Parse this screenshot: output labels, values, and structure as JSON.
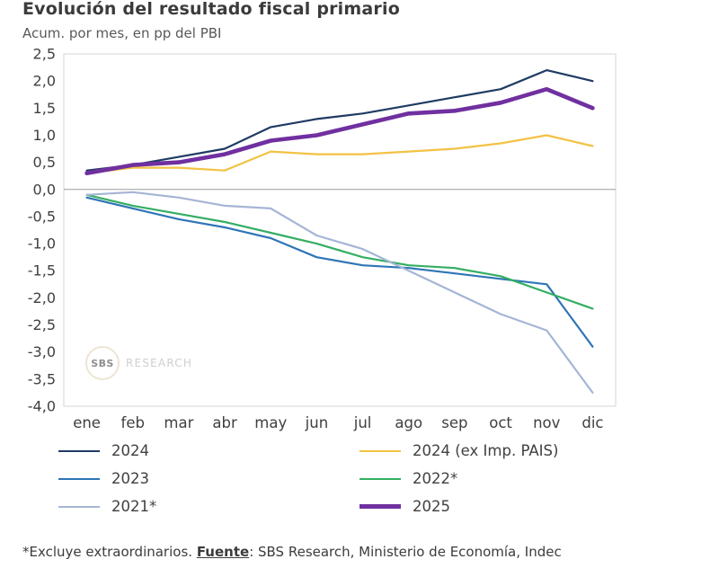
{
  "header": {
    "title": "Evolución del resultado fiscal primario",
    "subtitle": "Acum. por mes, en pp del PBI"
  },
  "watermark": {
    "badge": "SBS",
    "label": "RESEARCH"
  },
  "footer": {
    "prefix": "*Excluye extraordinarios. ",
    "source_label": "Fuente",
    "source_text": ": SBS Research, Ministerio de Economía, Indec"
  },
  "chart_data": {
    "type": "line",
    "title": "Evolución del resultado fiscal primario",
    "subtitle": "Acum. por mes, en pp del PBI",
    "categories": [
      "ene",
      "feb",
      "mar",
      "abr",
      "may",
      "jun",
      "jul",
      "ago",
      "sep",
      "oct",
      "nov",
      "dic"
    ],
    "ylim": [
      -4.0,
      2.5
    ],
    "ytick_step": 0.5,
    "decimal_comma": true,
    "grid": false,
    "legend_position": "bottom",
    "border_color": "#d6d6d6",
    "axis_color": "#9b9b9b",
    "tick_label_color": "#404040",
    "series": [
      {
        "name": "2024",
        "color": "#1f3b63",
        "stroke_width": 2.2,
        "values": [
          0.35,
          0.45,
          0.6,
          0.75,
          1.15,
          1.3,
          1.4,
          1.55,
          1.7,
          1.85,
          2.2,
          2.0
        ]
      },
      {
        "name": "2024 (ex Imp. PAIS)",
        "color": "#f3c244",
        "stroke_width": 2.2,
        "values": [
          0.3,
          0.4,
          0.4,
          0.35,
          0.7,
          0.65,
          0.65,
          0.7,
          0.75,
          0.85,
          1.0,
          0.8
        ]
      },
      {
        "name": "2023",
        "color": "#2e75b6",
        "stroke_width": 2.2,
        "values": [
          -0.15,
          -0.35,
          -0.55,
          -0.7,
          -0.9,
          -1.25,
          -1.4,
          -1.45,
          -1.55,
          -1.65,
          -1.75,
          -2.9
        ]
      },
      {
        "name": "2022*",
        "color": "#34ae62",
        "stroke_width": 2.2,
        "values": [
          -0.1,
          -0.3,
          -0.45,
          -0.6,
          -0.8,
          -1.0,
          -1.25,
          -1.4,
          -1.45,
          -1.6,
          -1.9,
          -2.2
        ]
      },
      {
        "name": "2021*",
        "color": "#a5b5d5",
        "stroke_width": 2.2,
        "values": [
          -0.1,
          -0.05,
          -0.15,
          -0.3,
          -0.35,
          -0.85,
          -1.1,
          -1.5,
          -1.9,
          -2.3,
          -2.6,
          -3.75
        ]
      },
      {
        "name": "2025",
        "color": "#7030a0",
        "stroke_width": 4.6,
        "values": [
          0.3,
          0.45,
          0.5,
          0.65,
          0.9,
          1.0,
          1.2,
          1.4,
          1.45,
          1.6,
          1.85,
          1.5
        ]
      }
    ]
  }
}
